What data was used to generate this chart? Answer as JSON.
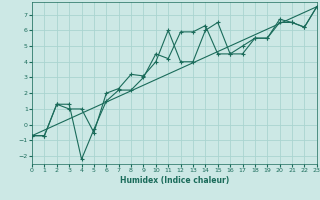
{
  "title": "",
  "xlabel": "Humidex (Indice chaleur)",
  "bg_color": "#cce8e5",
  "grid_color": "#aad4d0",
  "line_color": "#1a6b5a",
  "xlim": [
    0,
    23
  ],
  "ylim": [
    -2.5,
    7.8
  ],
  "xticks": [
    0,
    1,
    2,
    3,
    4,
    5,
    6,
    7,
    8,
    9,
    10,
    11,
    12,
    13,
    14,
    15,
    16,
    17,
    18,
    19,
    20,
    21,
    22,
    23
  ],
  "yticks": [
    -2,
    -1,
    0,
    1,
    2,
    3,
    4,
    5,
    6,
    7
  ],
  "line1_x": [
    0,
    1,
    2,
    3,
    4,
    5,
    6,
    7,
    8,
    9,
    10,
    11,
    12,
    13,
    14,
    15,
    16,
    17,
    18,
    19,
    20,
    21,
    22,
    23
  ],
  "line1_y": [
    -0.7,
    -0.7,
    1.3,
    1.0,
    1.0,
    -0.5,
    2.0,
    2.3,
    3.2,
    3.1,
    4.0,
    6.0,
    4.0,
    4.0,
    6.0,
    6.5,
    4.5,
    4.5,
    5.5,
    5.5,
    6.7,
    6.5,
    6.2,
    7.5
  ],
  "line2_x": [
    0,
    1,
    2,
    3,
    4,
    5,
    6,
    7,
    8,
    9,
    10,
    11,
    12,
    13,
    14,
    15,
    16,
    17,
    18,
    19,
    20,
    21,
    22,
    23
  ],
  "line2_y": [
    -0.7,
    -0.7,
    1.3,
    1.3,
    -2.2,
    -0.3,
    1.5,
    2.2,
    2.2,
    3.0,
    4.5,
    4.2,
    5.9,
    5.9,
    6.3,
    4.5,
    4.5,
    5.0,
    5.5,
    5.5,
    6.5,
    6.5,
    6.2,
    7.5
  ],
  "line3_x": [
    0,
    23
  ],
  "line3_y": [
    -0.7,
    7.5
  ]
}
